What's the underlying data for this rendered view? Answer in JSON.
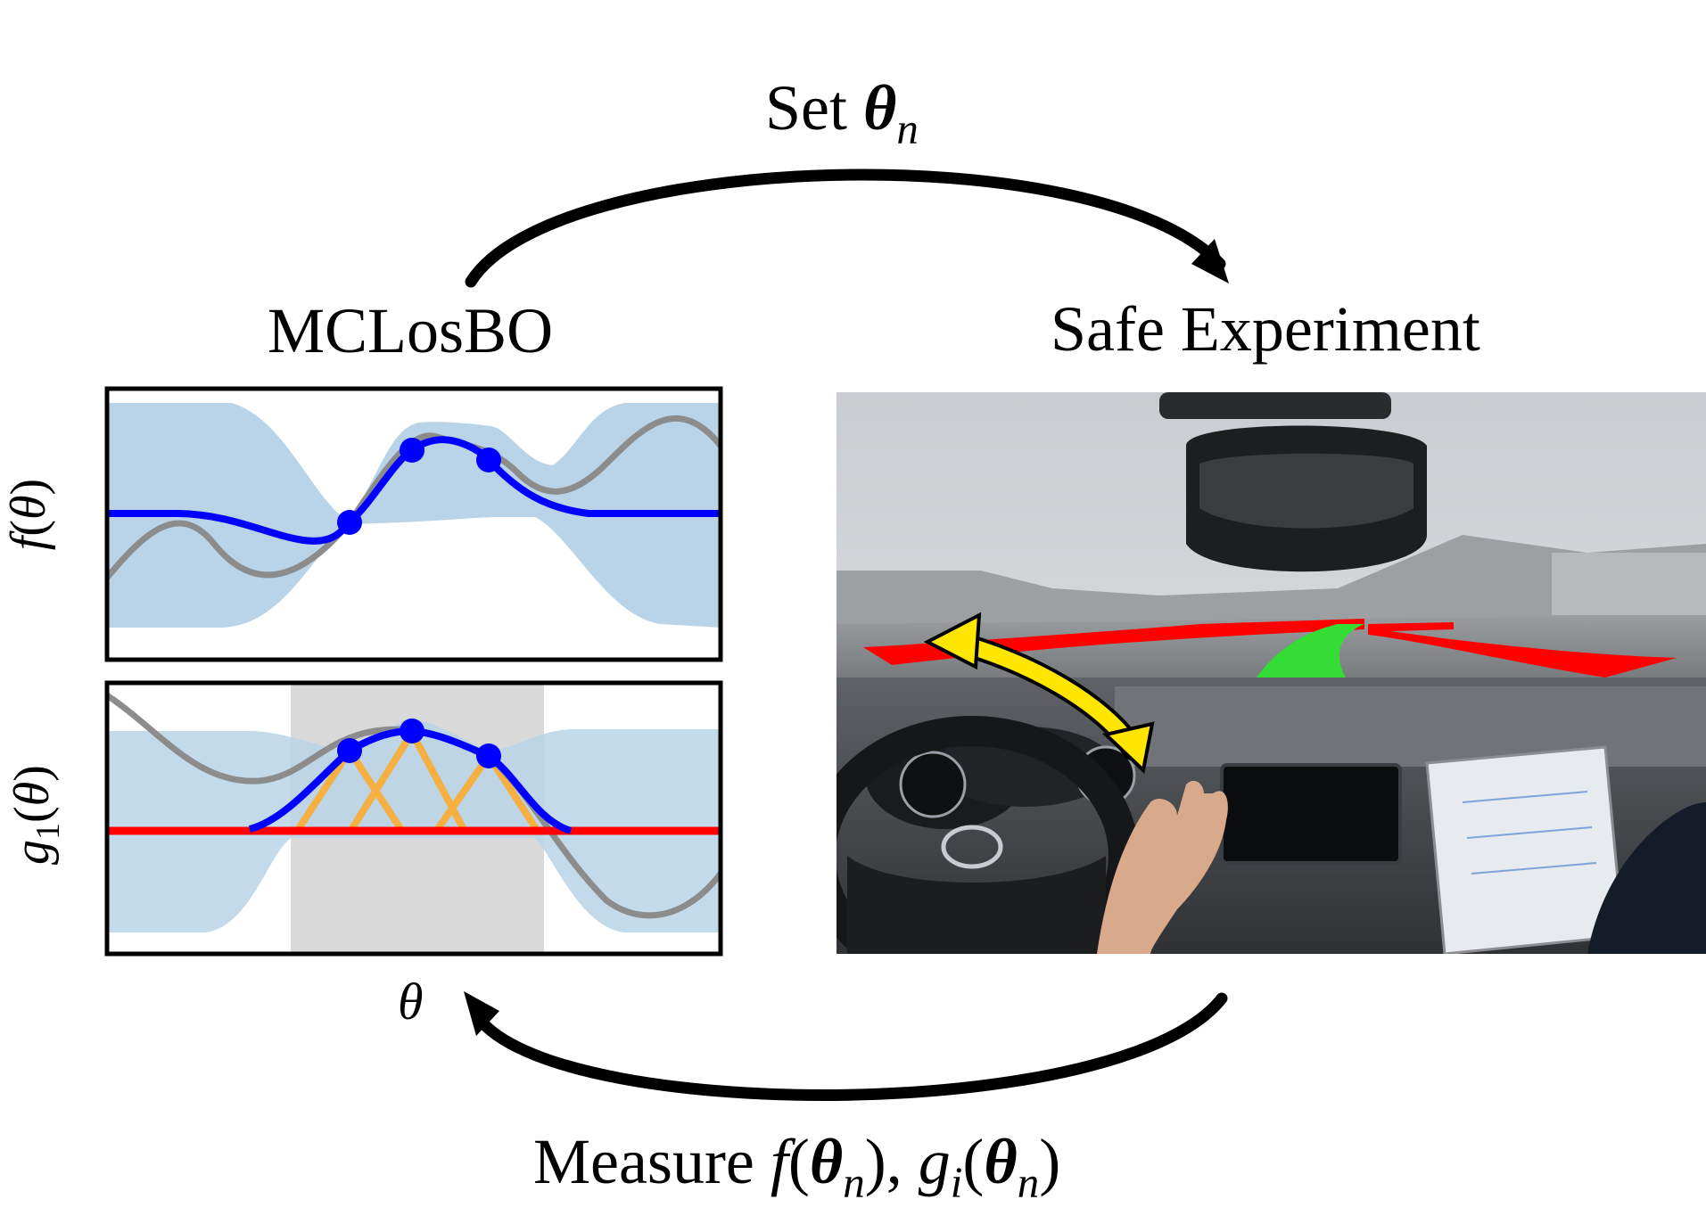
{
  "labels": {
    "top_arrow_prefix": "Set ",
    "top_arrow_symbol": "θ",
    "top_arrow_subscript": "n",
    "left_title": "MCLosBO",
    "right_title": "Safe Experiment",
    "x_axis": "θ",
    "bottom_prefix": "Measure ",
    "bottom_f": "f",
    "bottom_g": "g",
    "bottom_g_sub": "i",
    "bottom_theta": "θ",
    "bottom_theta_sub": "n",
    "y_top_f": "f",
    "y_top_arg": "θ",
    "y_bottom_g": "g",
    "y_bottom_sub": "1",
    "y_bottom_arg": "θ"
  },
  "colors": {
    "posterior_mean": "#0000ff",
    "confidence_band": "#b9d3e8",
    "true_function": "#8c8c8c",
    "safety_threshold": "#ff0000",
    "lipschitz_cones": "#f5b041",
    "safe_region": "#d9d9d9",
    "steering_arrow": "#ffe600",
    "road_boundary": "#ff0000",
    "planned_path": "#33dd33"
  }
}
